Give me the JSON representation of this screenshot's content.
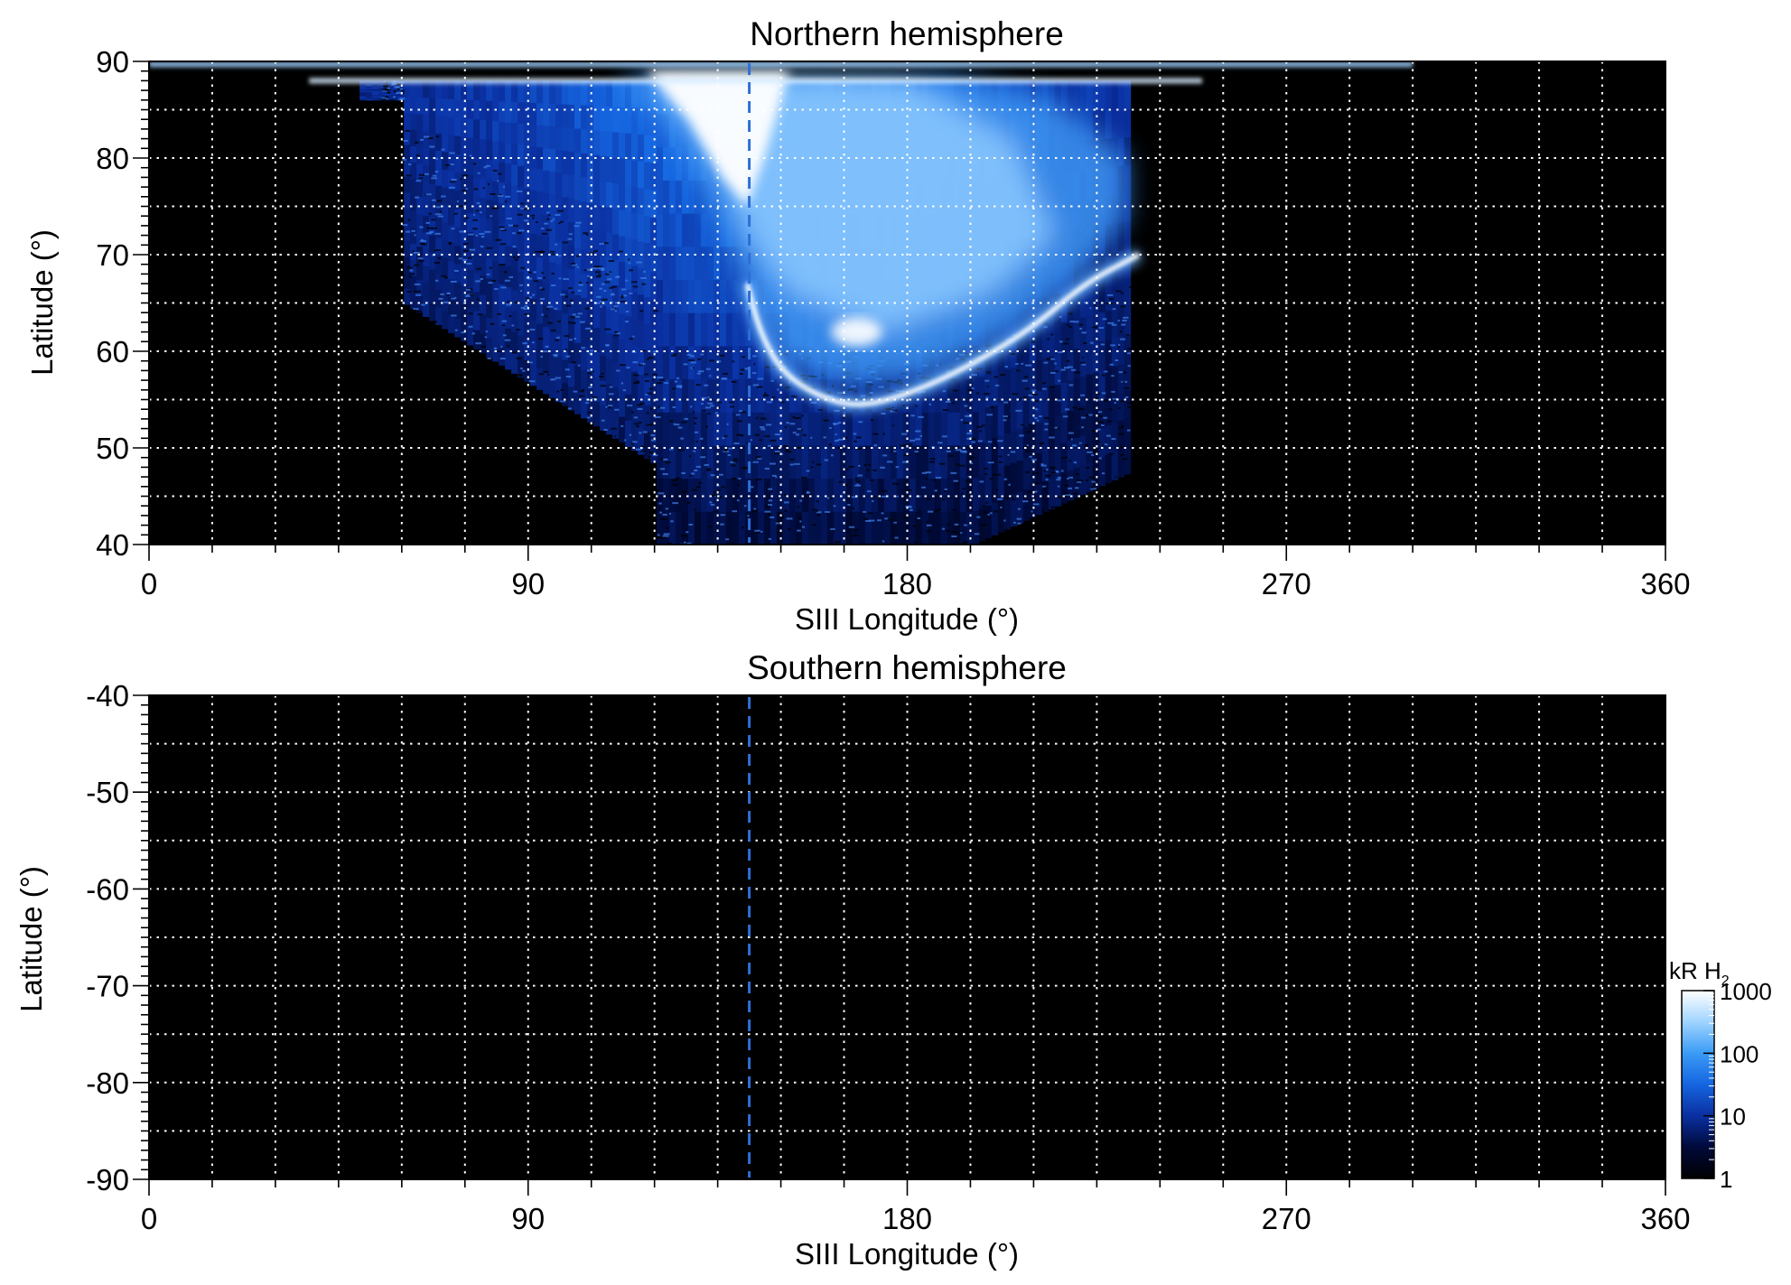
{
  "chart_data": [
    {
      "type": "heatmap",
      "title": "Northern hemisphere",
      "xlabel": "SIII Longitude (°)",
      "ylabel": "Latitude (°)",
      "xlim": [
        0,
        360
      ],
      "ylim": [
        40,
        90
      ],
      "xticks": [
        0,
        90,
        180,
        270,
        360
      ],
      "yticks": [
        40,
        50,
        60,
        70,
        80,
        90
      ],
      "xtick_labels": [
        "0",
        "90",
        "180",
        "270",
        "360"
      ],
      "ytick_labels": [
        "40",
        "50",
        "60",
        "70",
        "80",
        "90"
      ],
      "grid": true,
      "grid_x_step": 15,
      "grid_y_step": 5,
      "background_color": "#000000",
      "reference_longitude": 142.5,
      "reference_line_color": "#2e6fd6",
      "emission_region": {
        "description_key": "auroral oval bright emission",
        "longitude_range": [
          50,
          235
        ],
        "latitude_range": [
          40,
          90
        ],
        "main_oval_points": [
          [
            142,
            67
          ],
          [
            145,
            62
          ],
          [
            150,
            58
          ],
          [
            158,
            55.5
          ],
          [
            168,
            54.2
          ],
          [
            180,
            55.5
          ],
          [
            195,
            58.5
          ],
          [
            210,
            62.5
          ],
          [
            222,
            67
          ],
          [
            235,
            70
          ]
        ],
        "bright_spot": [
          168,
          62
        ],
        "polar_cap_bright": [
          [
            120,
            88
          ],
          [
            140,
            78
          ],
          [
            150,
            88
          ]
        ]
      }
    },
    {
      "type": "heatmap",
      "title": "Southern hemisphere",
      "xlabel": "SIII Longitude (°)",
      "ylabel": "Latitude (°)",
      "xlim": [
        0,
        360
      ],
      "ylim": [
        -90,
        -40
      ],
      "xticks": [
        0,
        90,
        180,
        270,
        360
      ],
      "yticks": [
        -90,
        -80,
        -70,
        -60,
        -50,
        -40
      ],
      "xtick_labels": [
        "0",
        "90",
        "180",
        "270",
        "360"
      ],
      "ytick_labels": [
        "-90",
        "-80",
        "-70",
        "-60",
        "-50",
        "-40"
      ],
      "grid": true,
      "grid_x_step": 15,
      "grid_y_step": 5,
      "background_color": "#000000",
      "reference_longitude": 142.5,
      "reference_line_color": "#2e6fd6"
    }
  ],
  "colorbar": {
    "label_main": "kR H",
    "label_sub": "2",
    "scale": "log",
    "range": [
      1,
      1000
    ],
    "ticks": [
      1,
      10,
      100,
      1000
    ],
    "tick_labels": [
      "1",
      "10",
      "100",
      "1000"
    ],
    "colors": [
      "#000000",
      "#000a3a",
      "#0a2fa0",
      "#1565e0",
      "#3a9bf5",
      "#9fd4ff",
      "#ffffff"
    ]
  }
}
